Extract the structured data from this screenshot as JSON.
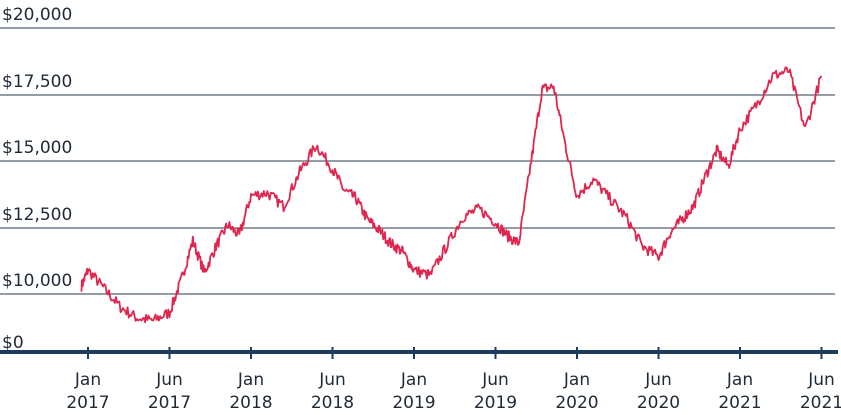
{
  "chart_data": {
    "type": "line",
    "title": "",
    "xlabel": "",
    "ylabel": "",
    "y_tick_labels": [
      "$0",
      "$10,000",
      "$12,500",
      "$15,000",
      "$17,500",
      "$20,000"
    ],
    "x_tick_labels": [
      {
        "month": "Jan",
        "year": "2017"
      },
      {
        "month": "Jun",
        "year": "2017"
      },
      {
        "month": "Jan",
        "year": "2018"
      },
      {
        "month": "Jun",
        "year": "2018"
      },
      {
        "month": "Jan",
        "year": "2019"
      },
      {
        "month": "Jun",
        "year": "2019"
      },
      {
        "month": "Jan",
        "year": "2020"
      },
      {
        "month": "Jun",
        "year": "2020"
      },
      {
        "month": "Jan",
        "year": "2021"
      },
      {
        "month": "Jun",
        "year": "2021"
      }
    ],
    "ylim_display": [
      10000,
      20000
    ],
    "grid": true,
    "colors": {
      "line": "#e0264e",
      "grid": "#2b3a4a",
      "axis": "#1f3a5f"
    },
    "series": [
      {
        "x": [
          "2016-12",
          "2017-01",
          "2017-02",
          "2017-03",
          "2017-04",
          "2017-05",
          "2017-06",
          "2017-07",
          "2017-08",
          "2017-09",
          "2017-10",
          "2017-11",
          "2017-12",
          "2018-01",
          "2018-02",
          "2018-03",
          "2018-04",
          "2018-05",
          "2018-06",
          "2018-07",
          "2018-08",
          "2018-09",
          "2018-10",
          "2018-11",
          "2018-12",
          "2019-01",
          "2019-02",
          "2019-03",
          "2019-04",
          "2019-05",
          "2019-06",
          "2019-07",
          "2019-08",
          "2019-09",
          "2019-10",
          "2019-11",
          "2019-12",
          "2020-01",
          "2020-02",
          "2020-03",
          "2020-04",
          "2020-05",
          "2020-06",
          "2020-07",
          "2020-08",
          "2020-09",
          "2020-10",
          "2020-11",
          "2020-12",
          "2021-01",
          "2021-02",
          "2021-03",
          "2021-04",
          "2021-05",
          "2021-06"
        ],
        "values": [
          10300,
          10900,
          10200,
          9500,
          9100,
          9000,
          9300,
          10500,
          12000,
          10800,
          11800,
          12600,
          12200,
          13700,
          13800,
          13300,
          14600,
          15600,
          14700,
          13900,
          13600,
          12800,
          12400,
          11900,
          11600,
          10900,
          10700,
          11800,
          12900,
          13200,
          12700,
          12200,
          11900,
          14800,
          17700,
          17800,
          15600,
          13700,
          14300,
          13600,
          12900,
          11800,
          11400,
          12300,
          12800,
          13300,
          14400,
          15400,
          14800,
          16200,
          17100,
          18200,
          18400,
          16200,
          18200
        ]
      }
    ]
  }
}
